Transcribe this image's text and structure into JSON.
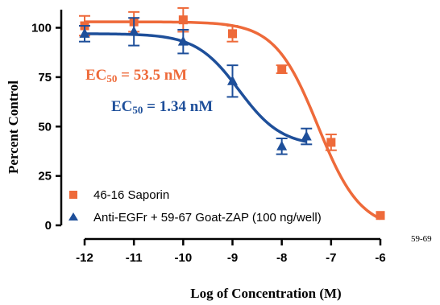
{
  "chart_data": {
    "type": "scatter",
    "xlabel": "Log of Concentration (M)",
    "ylabel": "Percent Control",
    "xlim": [
      -12,
      -6
    ],
    "ylim": [
      0,
      110
    ],
    "xticks": [
      "-12",
      "-11",
      "-10",
      "-9",
      "-8",
      "-7",
      "-6"
    ],
    "yticks": [
      "0",
      "25",
      "50",
      "75",
      "100"
    ],
    "series": [
      {
        "name": "46-16 Saporin",
        "color": "#ee6a3a",
        "marker": "square",
        "points": [
          {
            "x": -12,
            "y": 101,
            "err": 5
          },
          {
            "x": -11,
            "y": 103,
            "err": 5
          },
          {
            "x": -10,
            "y": 104,
            "err": 6
          },
          {
            "x": -9,
            "y": 97,
            "err": 4
          },
          {
            "x": -8,
            "y": 79,
            "err": 2
          },
          {
            "x": -7,
            "y": 42,
            "err": 4
          },
          {
            "x": -6,
            "y": 5,
            "err": 0
          }
        ],
        "fit": {
          "top": 103,
          "bottom": -2,
          "log_ec50": -7.27,
          "hill": 1.0
        },
        "annotation": {
          "prefix": "EC",
          "sub": "50",
          "suffix": " = 53.5 nM"
        }
      },
      {
        "name": "Anti-EGFr + 59-67 Goat-ZAP (100 ng/well)",
        "color": "#1e4f9a",
        "marker": "triangle",
        "points": [
          {
            "x": -12,
            "y": 97,
            "err": 4
          },
          {
            "x": -11,
            "y": 98,
            "err": 7
          },
          {
            "x": -10,
            "y": 93,
            "err": 6
          },
          {
            "x": -9,
            "y": 73,
            "err": 8
          },
          {
            "x": -8,
            "y": 40,
            "err": 4
          },
          {
            "x": -7.5,
            "y": 45,
            "err": 4
          }
        ],
        "fit": {
          "top": 97,
          "bottom": 40,
          "log_ec50": -8.87,
          "hill": 1.0,
          "x_end": -7.5
        },
        "annotation": {
          "prefix": "EC",
          "sub": "50",
          "suffix": " = 1.34 nM"
        }
      }
    ],
    "legend": "bottom-left",
    "code": "59-69"
  }
}
